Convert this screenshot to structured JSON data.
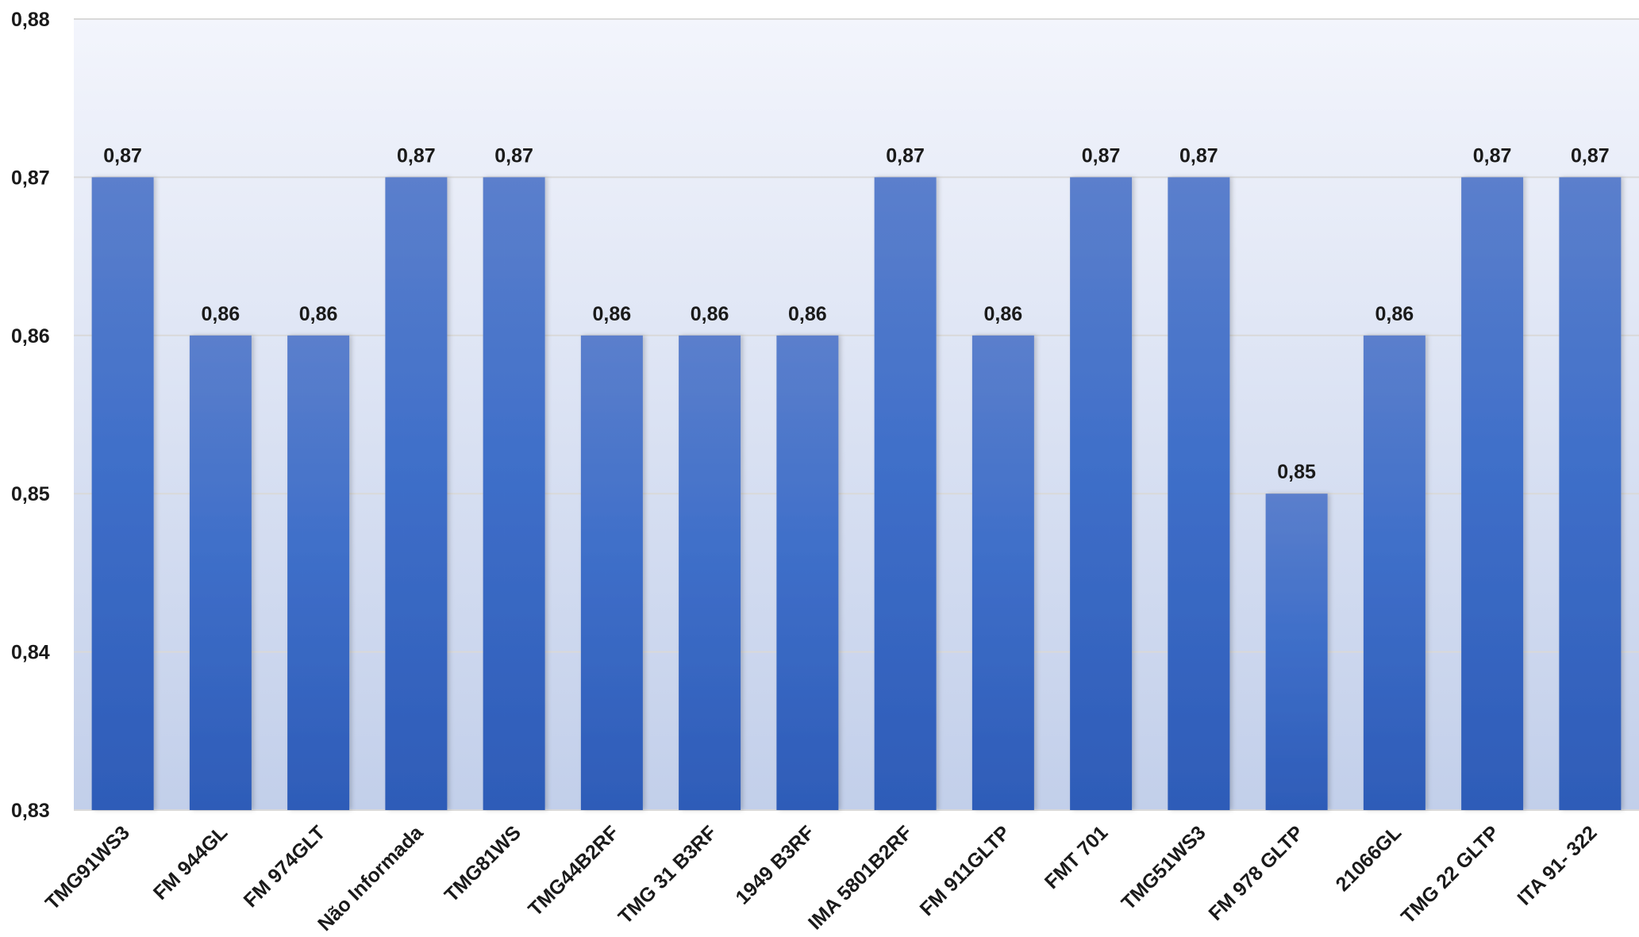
{
  "chart_data": {
    "type": "bar",
    "title": "",
    "xlabel": "",
    "ylabel": "",
    "categories": [
      "TMG91WS3",
      "FM 944GL",
      "FM 974GLT",
      "Não Informada",
      "TMG81WS",
      "TMG44B2RF",
      "TMG 31 B3RF",
      "1949 B3RF",
      "IMA 5801B2RF",
      "FM 911GLTP",
      "FMT 701",
      "TMG51WS3",
      "FM 978 GLTP",
      "21066GL",
      "TMG 22 GLTP",
      "ITA 91- 322"
    ],
    "values": [
      0.87,
      0.86,
      0.86,
      0.87,
      0.87,
      0.86,
      0.86,
      0.86,
      0.87,
      0.86,
      0.87,
      0.87,
      0.85,
      0.86,
      0.87,
      0.87
    ],
    "value_labels": [
      "0,87",
      "0,86",
      "0,86",
      "0,87",
      "0,87",
      "0,86",
      "0,86",
      "0,86",
      "0,87",
      "0,86",
      "0,87",
      "0,87",
      "0,85",
      "0,86",
      "0,87",
      "0,87"
    ],
    "ylim": [
      0.83,
      0.88
    ],
    "y_ticks": [
      0.83,
      0.84,
      0.85,
      0.86,
      0.87,
      0.88
    ],
    "y_tick_labels": [
      "0,83",
      "0,84",
      "0,85",
      "0,86",
      "0,87",
      "0,88"
    ],
    "grid": true,
    "legend": "none",
    "colors": {
      "bar_light": "#5b7fcc",
      "bar_mid": "#3f6fc9",
      "bar_dark": "#2e5cb8",
      "bg_top": "#f3f5fc",
      "bg_bottom": "#c2cfea",
      "grid": "#d9d9d9"
    }
  }
}
